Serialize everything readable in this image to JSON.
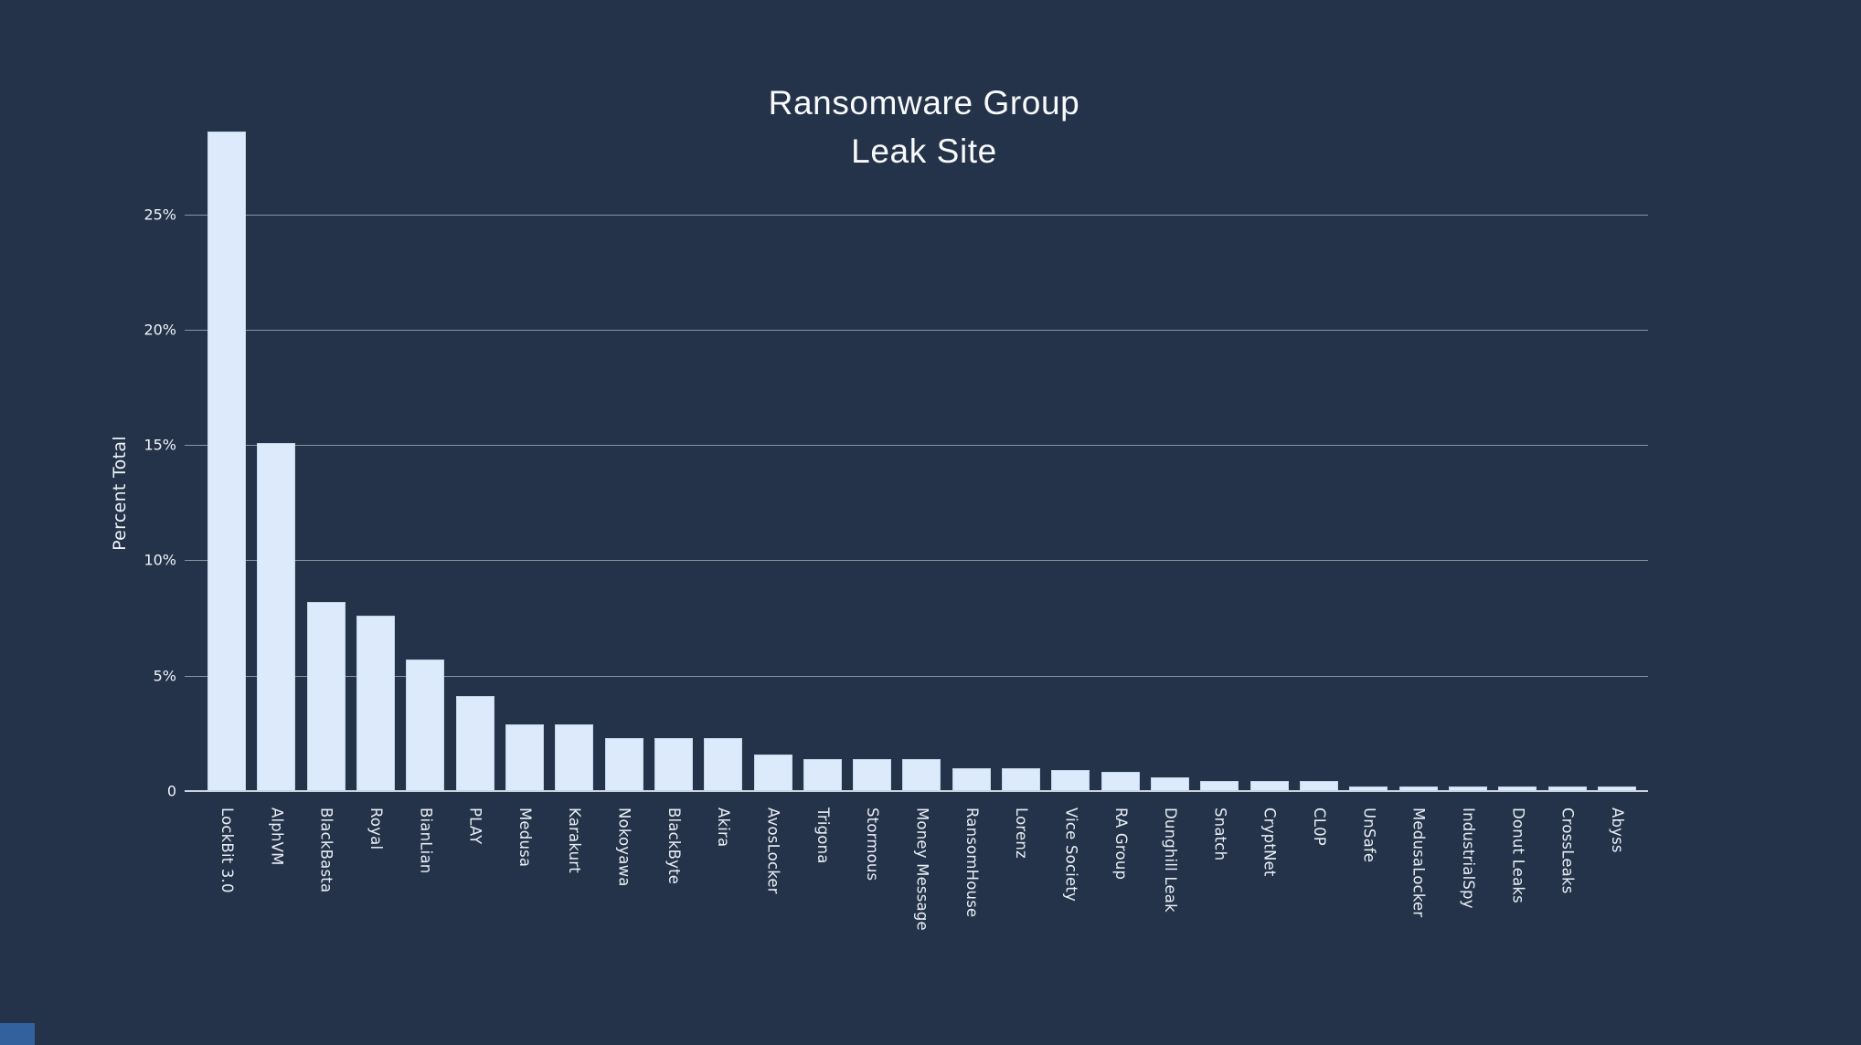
{
  "title": {
    "line1": "Ransomware Group",
    "line2": "Leak Site"
  },
  "chart_data": {
    "type": "bar",
    "title": "Ransomware Group Leak Site",
    "xlabel": "",
    "ylabel": "Percent Total",
    "ylim": [
      0,
      29.2
    ],
    "grid": true,
    "legend": "none",
    "y_ticks": [
      {
        "value": 0,
        "label": "0"
      },
      {
        "value": 5,
        "label": "5%"
      },
      {
        "value": 10,
        "label": "10%"
      },
      {
        "value": 15,
        "label": "15%"
      },
      {
        "value": 20,
        "label": "20%"
      },
      {
        "value": 25,
        "label": "25%"
      }
    ],
    "categories": [
      "LockBit 3.0",
      "AlphVM",
      "BlackBasta",
      "Royal",
      "BianLian",
      "PLAY",
      "Medusa",
      "Karakurt",
      "Nokoyawa",
      "BlackByte",
      "Akira",
      "AvosLocker",
      "Trigona",
      "Stormous",
      "Money Message",
      "RansomHouse",
      "Lorenz",
      "Vice Society",
      "RA Group",
      "Dunghill Leak",
      "Snatch",
      "CryptNet",
      "CL0P",
      "UnSafe",
      "MedusaLocker",
      "IndustrialSpy",
      "Donut Leaks",
      "CrossLeaks",
      "Abyss"
    ],
    "values": [
      28.6,
      15.1,
      8.2,
      7.6,
      5.7,
      4.1,
      2.9,
      2.9,
      2.3,
      2.3,
      2.3,
      1.6,
      1.4,
      1.4,
      1.4,
      1.0,
      1.0,
      0.9,
      0.85,
      0.6,
      0.45,
      0.45,
      0.45,
      0.2,
      0.2,
      0.2,
      0.2,
      0.2,
      0.2
    ]
  },
  "colors": {
    "background": "#243349",
    "bar_fill": "#dceafc",
    "bar_border": "#adc4de",
    "gridline": "#8f99a8",
    "axis_line": "#ebf0f6",
    "text": "#eff3f8",
    "corner_logo": "#33619e"
  },
  "icons": {
    "corner_logo": "flourish-logo-block"
  }
}
